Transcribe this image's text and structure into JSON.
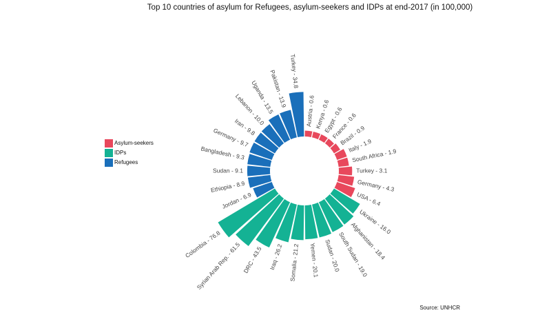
{
  "chart_data": {
    "type": "radial_bar",
    "title": "Top 10 countries of asylum for Refugees, asylum-seekers and IDPs at end-2017 (in 100,000)",
    "source": "Source: UNHCR",
    "series": [
      {
        "name": "Asylum-seekers",
        "color": "#e8485c",
        "categories": [
          "Austria - 0.6",
          "Kenya - 0.6",
          "Egypt - 0.6",
          "France - 0.6",
          "Brazil - 0.9",
          "Italy - 1.9",
          "South Africa - 1.9",
          "Turkey - 3.1",
          "Germany - 4.3",
          "USA - 6.4"
        ],
        "values": [
          0.6,
          0.6,
          0.6,
          0.6,
          0.9,
          1.9,
          1.9,
          3.1,
          4.3,
          6.4
        ]
      },
      {
        "name": "IDPs",
        "color": "#14b294",
        "categories": [
          "Ukraine - 16.0",
          "Afghanistan - 18.4",
          "South Sudan - 19.0",
          "Sudan - 20.0",
          "Yemen - 20.1",
          "Somalia - 21.2",
          "Iraq - 26.2",
          "DRC - 43.5",
          "Syrian Arab Rep. - 61.5",
          "Colombia - 76.8"
        ],
        "values": [
          16.0,
          18.4,
          19.0,
          20.0,
          20.1,
          21.2,
          26.2,
          43.5,
          61.5,
          76.8
        ]
      },
      {
        "name": "Refugees",
        "color": "#1a6fba",
        "categories": [
          "Jordan - 6.9",
          "Ethiopia - 8.9",
          "Sudan - 9.1",
          "Bangladesh - 9.3",
          "Germany - 9.7",
          "Iran - 9.8",
          "Lebanon - 10.0",
          "Uganda - 13.5",
          "Pakistan - 13.9",
          "Turkey - 34.8"
        ],
        "values": [
          6.9,
          8.9,
          9.1,
          9.3,
          9.7,
          9.8,
          10.0,
          13.5,
          13.9,
          34.8
        ]
      }
    ]
  }
}
